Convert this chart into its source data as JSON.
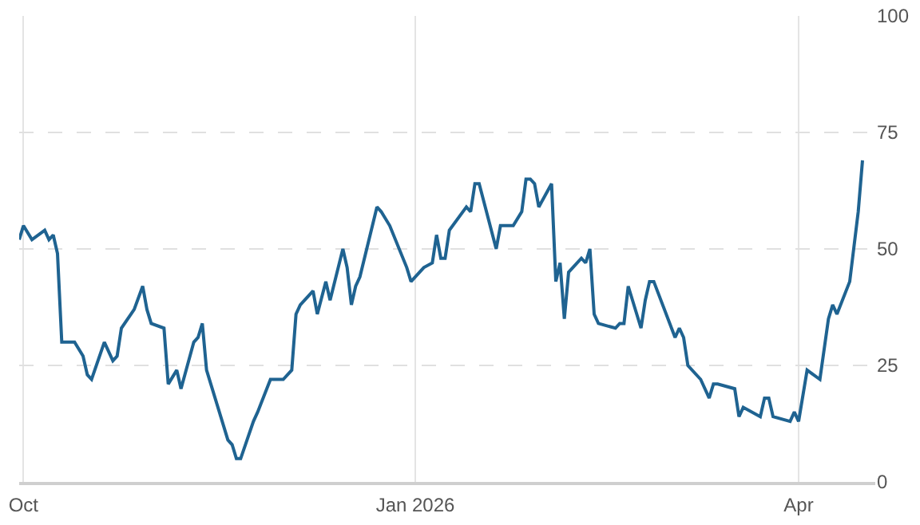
{
  "chart_data": {
    "type": "line",
    "color": "#1f6391",
    "line_style": "solid",
    "grid": true,
    "x": [
      "2025-09-30",
      "2025-10-01",
      "2025-10-03",
      "2025-10-06",
      "2025-10-07",
      "2025-10-08",
      "2025-10-09",
      "2025-10-10",
      "2025-10-13",
      "2025-10-15",
      "2025-10-16",
      "2025-10-17",
      "2025-10-20",
      "2025-10-22",
      "2025-10-23",
      "2025-10-24",
      "2025-10-27",
      "2025-10-29",
      "2025-10-30",
      "2025-10-31",
      "2025-11-03",
      "2025-11-04",
      "2025-11-06",
      "2025-11-07",
      "2025-11-10",
      "2025-11-11",
      "2025-11-12",
      "2025-11-13",
      "2025-11-14",
      "2025-11-18",
      "2025-11-19",
      "2025-11-20",
      "2025-11-21",
      "2025-11-24",
      "2025-11-25",
      "2025-11-28",
      "2025-12-01",
      "2025-12-03",
      "2025-12-04",
      "2025-12-05",
      "2025-12-08",
      "2025-12-09",
      "2025-12-11",
      "2025-12-12",
      "2025-12-15",
      "2025-12-16",
      "2025-12-17",
      "2025-12-18",
      "2025-12-19",
      "2025-12-23",
      "2025-12-24",
      "2025-12-26",
      "2025-12-30",
      "2025-12-31",
      "2026-01-03",
      "2026-01-05",
      "2026-01-06",
      "2026-01-07",
      "2026-01-08",
      "2026-01-09",
      "2026-01-13",
      "2026-01-14",
      "2026-01-15",
      "2026-01-16",
      "2026-01-20",
      "2026-01-21",
      "2026-01-23",
      "2026-01-24",
      "2026-01-26",
      "2026-01-27",
      "2026-01-28",
      "2026-01-29",
      "2026-01-30",
      "2026-02-02",
      "2026-02-03",
      "2026-02-04",
      "2026-02-05",
      "2026-02-06",
      "2026-02-09",
      "2026-02-10",
      "2026-02-11",
      "2026-02-12",
      "2026-02-13",
      "2026-02-17",
      "2026-02-18",
      "2026-02-19",
      "2026-02-20",
      "2026-02-23",
      "2026-02-24",
      "2026-02-25",
      "2026-02-26",
      "2026-03-03",
      "2026-03-04",
      "2026-03-05",
      "2026-03-06",
      "2026-03-09",
      "2026-03-11",
      "2026-03-12",
      "2026-03-13",
      "2026-03-17",
      "2026-03-18",
      "2026-03-19",
      "2026-03-23",
      "2026-03-24",
      "2026-03-25",
      "2026-03-26",
      "2026-03-30",
      "2026-03-31",
      "2026-04-01",
      "2026-04-03",
      "2026-04-06",
      "2026-04-08",
      "2026-04-09",
      "2026-04-10",
      "2026-04-13",
      "2026-04-15",
      "2026-04-16"
    ],
    "values": [
      52,
      55,
      52,
      54,
      52,
      53,
      49,
      30,
      30,
      27,
      23,
      22,
      30,
      26,
      27,
      33,
      37,
      42,
      37,
      34,
      33,
      21,
      24,
      20,
      30,
      31,
      34,
      24,
      21,
      9,
      8,
      5,
      5,
      13,
      15,
      22,
      22,
      24,
      36,
      38,
      41,
      36,
      43,
      39,
      50,
      46,
      38,
      42,
      44,
      59,
      58,
      55,
      46,
      43,
      46,
      47,
      53,
      48,
      48,
      54,
      59,
      58,
      64,
      64,
      50,
      55,
      55,
      55,
      58,
      65,
      65,
      64,
      59,
      64,
      43,
      47,
      35,
      45,
      48,
      47,
      50,
      36,
      34,
      33,
      34,
      34,
      42,
      33,
      39,
      43,
      43,
      31,
      33,
      31,
      25,
      22,
      18,
      21,
      21,
      20,
      14,
      16,
      14,
      18,
      18,
      14,
      13,
      15,
      13,
      24,
      22,
      35,
      38,
      36,
      43,
      58,
      69
    ],
    "xlim": [
      "2025-09-30",
      "2026-04-19"
    ],
    "xticks": [
      {
        "value": "2025-10-01",
        "label": "Oct"
      },
      {
        "value": "2026-01-01",
        "label": "Jan 2026"
      },
      {
        "value": "2026-04-01",
        "label": "Apr"
      }
    ],
    "ylim": [
      0,
      100
    ],
    "yticks": [
      0,
      25,
      50,
      75,
      100
    ]
  }
}
